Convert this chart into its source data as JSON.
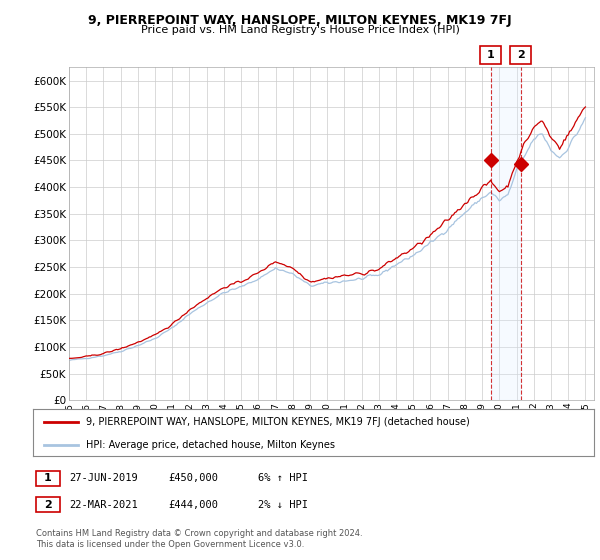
{
  "title1": "9, PIERREPOINT WAY, HANSLOPE, MILTON KEYNES, MK19 7FJ",
  "title2": "Price paid vs. HM Land Registry's House Price Index (HPI)",
  "ytick_values": [
    0,
    50000,
    100000,
    150000,
    200000,
    250000,
    300000,
    350000,
    400000,
    450000,
    500000,
    550000,
    600000
  ],
  "ylim": [
    0,
    625000
  ],
  "xlim_start": 1995.0,
  "xlim_end": 2025.5,
  "hpi_color": "#a8c4e0",
  "price_color": "#cc0000",
  "shade_color": "#ddeeff",
  "transaction1_x": 2019.49,
  "transaction1_y": 450000,
  "transaction2_x": 2021.23,
  "transaction2_y": 444000,
  "legend_label1": "9, PIERREPOINT WAY, HANSLOPE, MILTON KEYNES, MK19 7FJ (detached house)",
  "legend_label2": "HPI: Average price, detached house, Milton Keynes",
  "table_row1_num": "1",
  "table_row1_date": "27-JUN-2019",
  "table_row1_price": "£450,000",
  "table_row1_hpi": "6% ↑ HPI",
  "table_row2_num": "2",
  "table_row2_date": "22-MAR-2021",
  "table_row2_price": "£444,000",
  "table_row2_hpi": "2% ↓ HPI",
  "footer": "Contains HM Land Registry data © Crown copyright and database right 2024.\nThis data is licensed under the Open Government Licence v3.0.",
  "background_color": "#ffffff",
  "grid_color": "#cccccc",
  "fig_width": 6.0,
  "fig_height": 5.6
}
